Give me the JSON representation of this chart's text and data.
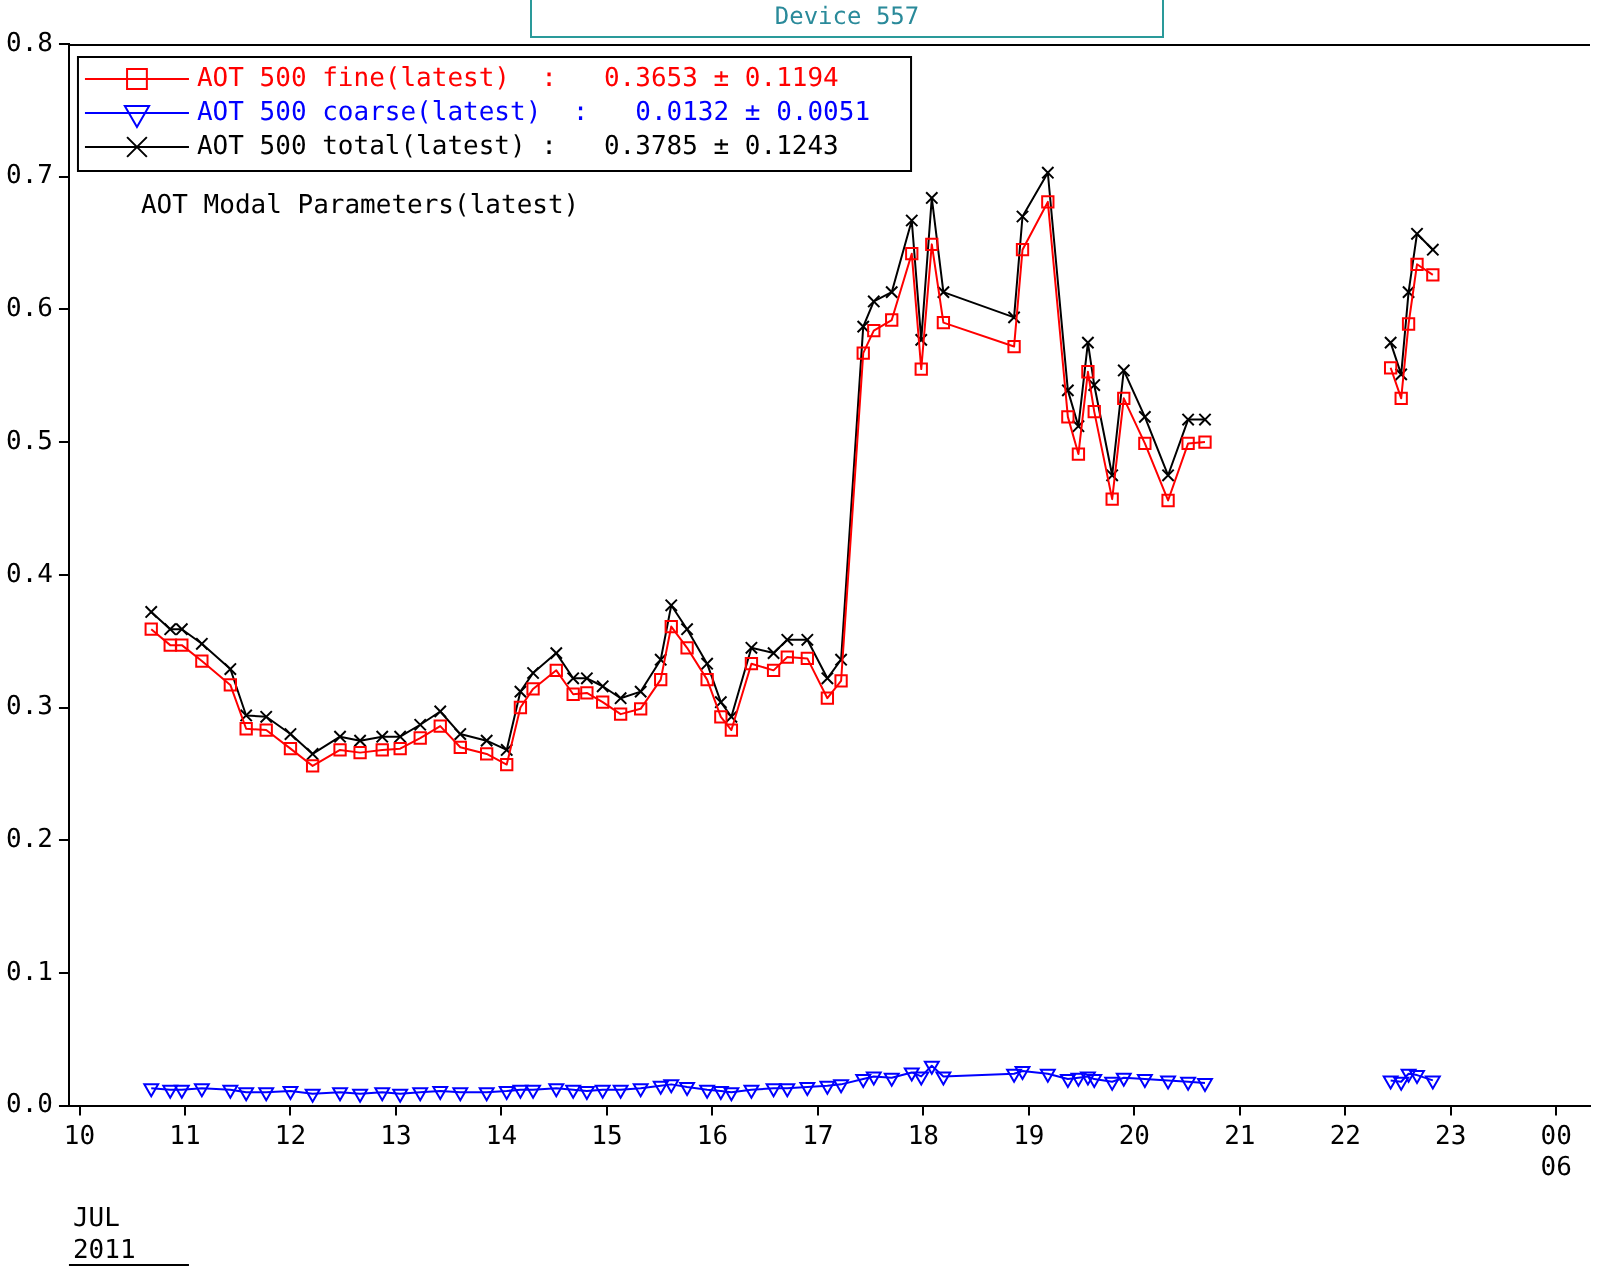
{
  "chart_data": {
    "type": "line",
    "title": "Device 557",
    "xlabel": "JUL 2011",
    "annotations": [
      "AOT Modal Parameters(latest)"
    ],
    "xlim": [
      9.9,
      24.32
    ],
    "xticks": [
      {
        "value": 10,
        "label": "10"
      },
      {
        "value": 11,
        "label": "11"
      },
      {
        "value": 12,
        "label": "12"
      },
      {
        "value": 13,
        "label": "13"
      },
      {
        "value": 14,
        "label": "14"
      },
      {
        "value": 15,
        "label": "15"
      },
      {
        "value": 16,
        "label": "16"
      },
      {
        "value": 17,
        "label": "17"
      },
      {
        "value": 18,
        "label": "18"
      },
      {
        "value": 19,
        "label": "19"
      },
      {
        "value": 20,
        "label": "20"
      },
      {
        "value": 21,
        "label": "21"
      },
      {
        "value": 22,
        "label": "22"
      },
      {
        "value": 23,
        "label": "23"
      },
      {
        "value": 24,
        "label": "00\n06"
      }
    ],
    "ylim": [
      0,
      0.8
    ],
    "yticks": [
      {
        "value": 0,
        "label": "0.0"
      },
      0.1,
      0.2,
      0.3,
      0.4,
      0.5,
      0.6,
      0.7,
      0.8
    ],
    "grid": false,
    "legend": "top left",
    "line_style": "solid",
    "x": [
      10.68,
      10.86,
      10.97,
      11.16,
      11.43,
      11.58,
      11.77,
      12.0,
      12.21,
      12.47,
      12.66,
      12.87,
      13.04,
      13.23,
      13.42,
      13.61,
      13.86,
      14.05,
      14.18,
      14.3,
      14.52,
      14.68,
      14.81,
      14.96,
      15.13,
      15.32,
      15.51,
      15.61,
      15.76,
      15.95,
      16.08,
      16.18,
      16.37,
      16.58,
      16.71,
      16.9,
      17.09,
      17.22,
      17.43,
      17.53,
      17.7,
      17.89,
      17.98,
      18.08,
      18.19,
      18.86,
      18.94,
      19.18,
      19.37,
      19.47,
      19.56,
      19.62,
      19.79,
      19.9,
      20.1,
      20.32,
      20.51,
      20.67,
      21.5,
      22.43,
      22.53,
      22.6,
      22.68,
      22.83
    ],
    "series": [
      {
        "name": "AOT 500 fine(latest)  :   0.3653 ± 0.1194",
        "color": "#ff0000",
        "marker": "square",
        "values": [
          0.359,
          0.347,
          0.347,
          0.335,
          0.317,
          0.284,
          0.283,
          0.269,
          0.256,
          0.268,
          0.266,
          0.268,
          0.269,
          0.277,
          0.286,
          0.27,
          0.265,
          0.257,
          0.3,
          0.314,
          0.328,
          0.31,
          0.311,
          0.304,
          0.295,
          0.299,
          0.321,
          0.361,
          0.345,
          0.321,
          0.293,
          0.283,
          0.333,
          0.328,
          0.338,
          0.337,
          0.307,
          0.32,
          0.567,
          0.584,
          0.592,
          0.642,
          0.555,
          0.649,
          0.59,
          0.572,
          0.645,
          0.681,
          0.519,
          0.491,
          0.553,
          0.523,
          0.457,
          0.533,
          0.499,
          0.456,
          0.499,
          0.5,
          null,
          0.556,
          0.533,
          0.589,
          0.634,
          0.626
        ]
      },
      {
        "name": "AOT 500 coarse(latest)  :   0.0132 ± 0.0051",
        "color": "#0000ff",
        "marker": "triangle",
        "values": [
          0.013,
          0.012,
          0.012,
          0.013,
          0.012,
          0.01,
          0.01,
          0.011,
          0.009,
          0.01,
          0.009,
          0.01,
          0.009,
          0.01,
          0.011,
          0.01,
          0.01,
          0.011,
          0.012,
          0.012,
          0.013,
          0.012,
          0.011,
          0.012,
          0.012,
          0.013,
          0.015,
          0.016,
          0.014,
          0.012,
          0.011,
          0.01,
          0.012,
          0.013,
          0.013,
          0.014,
          0.015,
          0.016,
          0.02,
          0.022,
          0.021,
          0.025,
          0.022,
          0.03,
          0.022,
          0.024,
          0.026,
          0.024,
          0.02,
          0.021,
          0.022,
          0.02,
          0.018,
          0.021,
          0.02,
          0.019,
          0.018,
          0.017,
          null,
          0.019,
          0.018,
          0.024,
          0.023,
          0.019
        ]
      },
      {
        "name": "AOT 500 total(latest) :   0.3785 ± 0.1243",
        "color": "#000000",
        "marker": "cross",
        "values": [
          0.372,
          0.359,
          0.359,
          0.348,
          0.329,
          0.294,
          0.293,
          0.28,
          0.265,
          0.278,
          0.275,
          0.278,
          0.278,
          0.287,
          0.297,
          0.28,
          0.275,
          0.268,
          0.312,
          0.326,
          0.341,
          0.322,
          0.322,
          0.316,
          0.307,
          0.312,
          0.336,
          0.377,
          0.359,
          0.333,
          0.304,
          0.293,
          0.345,
          0.341,
          0.351,
          0.351,
          0.322,
          0.336,
          0.587,
          0.606,
          0.613,
          0.667,
          0.577,
          0.684,
          0.613,
          0.594,
          0.67,
          0.703,
          0.539,
          0.512,
          0.575,
          0.543,
          0.475,
          0.554,
          0.519,
          0.475,
          0.517,
          0.517,
          null,
          0.575,
          0.551,
          0.613,
          0.657,
          0.645
        ]
      }
    ]
  }
}
